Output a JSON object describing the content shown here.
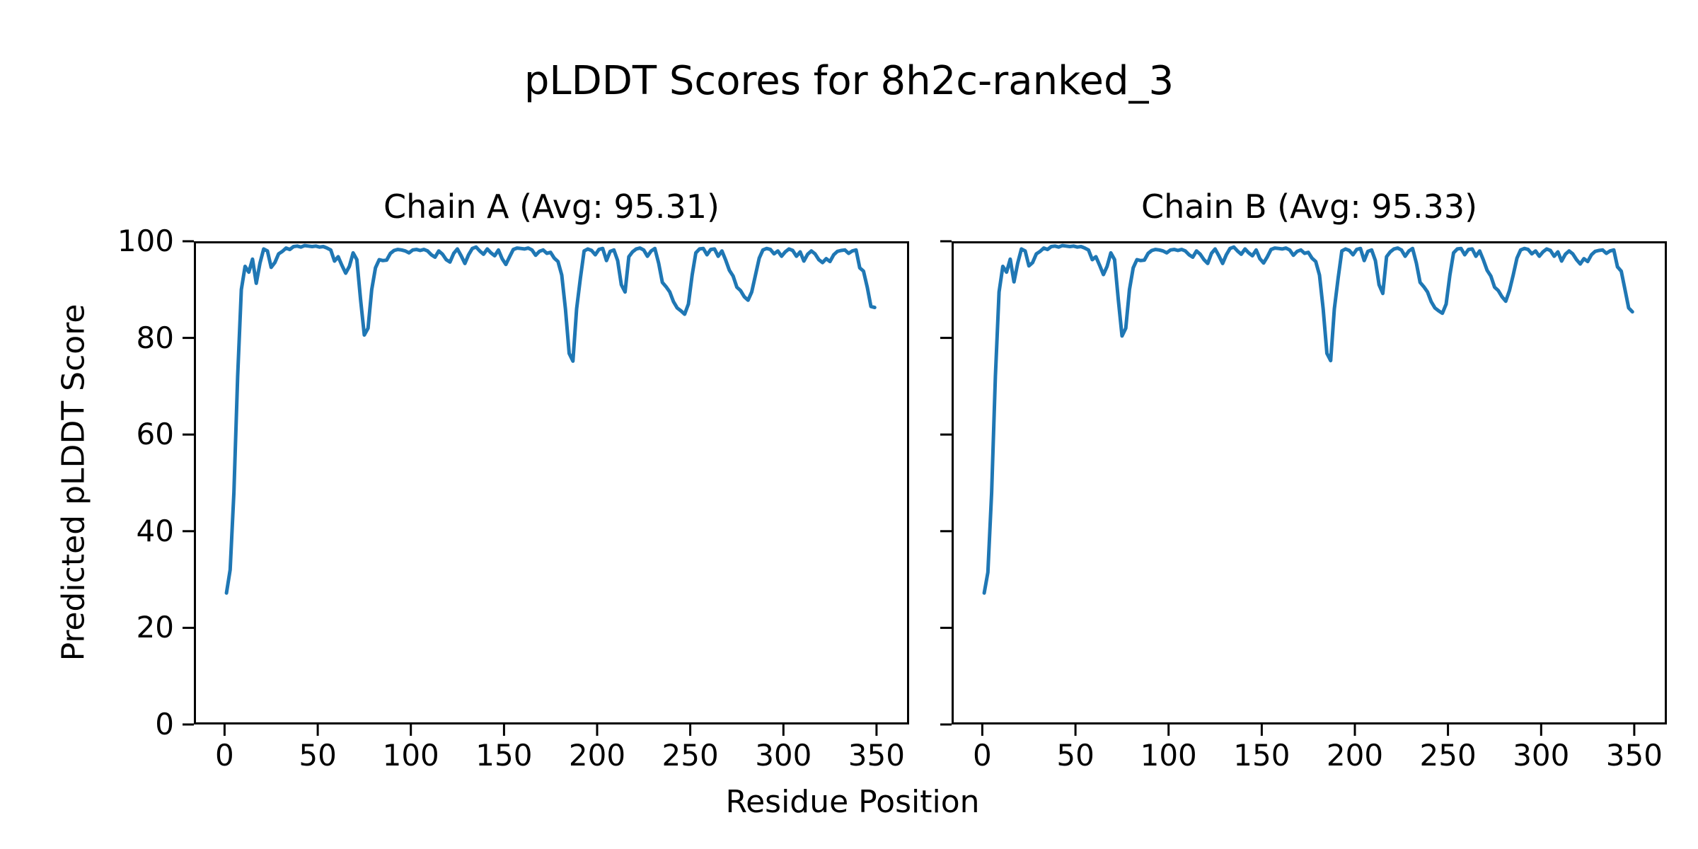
{
  "figure": {
    "suptitle": "pLDDT Scores for 8h2c-ranked_3",
    "xlabel": "Residue Position",
    "ylabel": "Predicted pLDDT Score",
    "background": "#ffffff",
    "line_color": "#1f77b4",
    "spine_color": "#000000",
    "text_color": "#000000"
  },
  "chart_data": [
    {
      "type": "line",
      "title": "Chain A (Avg: 95.31)",
      "series_name": "Chain A pLDDT",
      "avg": 95.31,
      "xlabel": "Residue Position",
      "ylabel": "Predicted pLDDT Score",
      "xlim": [
        -16.5,
        367.5
      ],
      "ylim": [
        0,
        100
      ],
      "xticks": [
        0,
        50,
        100,
        150,
        200,
        250,
        300,
        350
      ],
      "yticks": [
        0,
        20,
        40,
        60,
        80,
        100
      ],
      "show_ytick_labels": true,
      "grid": false,
      "legend": "none",
      "x": [
        1,
        3,
        5,
        7,
        9,
        11,
        13,
        15,
        17,
        19,
        21,
        23,
        25,
        27,
        29,
        31,
        33,
        35,
        37,
        39,
        41,
        43,
        45,
        47,
        49,
        51,
        53,
        55,
        57,
        59,
        61,
        63,
        65,
        67,
        69,
        71,
        73,
        75,
        77,
        79,
        81,
        83,
        85,
        87,
        89,
        91,
        93,
        95,
        97,
        99,
        101,
        103,
        105,
        107,
        109,
        111,
        113,
        115,
        117,
        119,
        121,
        123,
        125,
        127,
        129,
        131,
        133,
        135,
        137,
        139,
        141,
        143,
        145,
        147,
        149,
        151,
        153,
        155,
        157,
        159,
        161,
        163,
        165,
        167,
        169,
        171,
        173,
        175,
        177,
        179,
        181,
        183,
        185,
        187,
        189,
        191,
        193,
        195,
        197,
        199,
        201,
        203,
        205,
        207,
        209,
        211,
        213,
        215,
        217,
        219,
        221,
        223,
        225,
        227,
        229,
        231,
        233,
        235,
        237,
        239,
        241,
        243,
        245,
        247,
        249,
        251,
        253,
        255,
        257,
        259,
        261,
        263,
        265,
        267,
        269,
        271,
        273,
        275,
        277,
        279,
        281,
        283,
        285,
        287,
        289,
        291,
        293,
        295,
        297,
        299,
        301,
        303,
        305,
        307,
        309,
        311,
        313,
        315,
        317,
        319,
        321,
        323,
        325,
        327,
        329,
        331,
        333,
        335,
        337,
        339,
        341,
        343,
        345,
        347,
        349
      ],
      "y": [
        27.2,
        32.0,
        48.0,
        72.0,
        90.0,
        94.8,
        93.6,
        96.3,
        91.3,
        95.5,
        98.4,
        98.0,
        94.6,
        95.6,
        97.4,
        97.9,
        98.6,
        98.3,
        98.9,
        99.0,
        98.8,
        99.1,
        99.0,
        98.9,
        99.0,
        98.8,
        98.9,
        98.6,
        98.2,
        95.9,
        96.8,
        95.0,
        93.4,
        94.8,
        97.6,
        96.2,
        88.0,
        80.6,
        82.0,
        90.0,
        94.5,
        96.2,
        96.0,
        96.1,
        97.5,
        98.1,
        98.3,
        98.2,
        98.0,
        97.6,
        98.2,
        98.3,
        98.1,
        98.3,
        98.0,
        97.2,
        96.7,
        98.0,
        97.3,
        96.2,
        95.7,
        97.5,
        98.4,
        97.0,
        95.4,
        97.2,
        98.5,
        98.8,
        98.0,
        97.3,
        98.4,
        97.6,
        97.0,
        98.2,
        96.4,
        95.2,
        96.8,
        98.3,
        98.6,
        98.5,
        98.4,
        98.6,
        98.2,
        97.1,
        97.9,
        98.2,
        97.5,
        97.7,
        96.5,
        95.8,
        93.0,
        86.0,
        76.8,
        75.2,
        86.0,
        92.3,
        98.0,
        98.4,
        98.1,
        97.2,
        98.3,
        98.5,
        96.0,
        97.9,
        98.2,
        96.0,
        91.0,
        89.5,
        96.8,
        97.8,
        98.4,
        98.6,
        98.2,
        96.9,
        98.0,
        98.5,
        95.5,
        91.5,
        90.6,
        89.5,
        87.5,
        86.2,
        85.6,
        84.9,
        87.0,
        93.0,
        97.6,
        98.4,
        98.5,
        97.2,
        98.3,
        98.4,
        96.9,
        98.0,
        96.1,
        94.0,
        92.8,
        90.5,
        89.8,
        88.5,
        87.8,
        89.5,
        93.0,
        96.5,
        98.2,
        98.5,
        98.3,
        97.4,
        98.0,
        96.9,
        97.8,
        98.4,
        98.1,
        96.9,
        97.8,
        95.9,
        97.3,
        98.0,
        97.4,
        96.2,
        95.6,
        96.4,
        95.8,
        97.2,
        97.9,
        98.1,
        98.2,
        97.5,
        98.0,
        98.2,
        94.5,
        93.8,
        90.5,
        86.5,
        86.3
      ]
    },
    {
      "type": "line",
      "title": "Chain B (Avg: 95.33)",
      "series_name": "Chain B pLDDT",
      "avg": 95.33,
      "xlabel": "Residue Position",
      "ylabel": "Predicted pLDDT Score",
      "xlim": [
        -16.5,
        367.5
      ],
      "ylim": [
        0,
        100
      ],
      "xticks": [
        0,
        50,
        100,
        150,
        200,
        250,
        300,
        350
      ],
      "yticks": [
        0,
        20,
        40,
        60,
        80,
        100
      ],
      "show_ytick_labels": false,
      "grid": false,
      "legend": "none",
      "x": [
        1,
        3,
        5,
        7,
        9,
        11,
        13,
        15,
        17,
        19,
        21,
        23,
        25,
        27,
        29,
        31,
        33,
        35,
        37,
        39,
        41,
        43,
        45,
        47,
        49,
        51,
        53,
        55,
        57,
        59,
        61,
        63,
        65,
        67,
        69,
        71,
        73,
        75,
        77,
        79,
        81,
        83,
        85,
        87,
        89,
        91,
        93,
        95,
        97,
        99,
        101,
        103,
        105,
        107,
        109,
        111,
        113,
        115,
        117,
        119,
        121,
        123,
        125,
        127,
        129,
        131,
        133,
        135,
        137,
        139,
        141,
        143,
        145,
        147,
        149,
        151,
        153,
        155,
        157,
        159,
        161,
        163,
        165,
        167,
        169,
        171,
        173,
        175,
        177,
        179,
        181,
        183,
        185,
        187,
        189,
        191,
        193,
        195,
        197,
        199,
        201,
        203,
        205,
        207,
        209,
        211,
        213,
        215,
        217,
        219,
        221,
        223,
        225,
        227,
        229,
        231,
        233,
        235,
        237,
        239,
        241,
        243,
        245,
        247,
        249,
        251,
        253,
        255,
        257,
        259,
        261,
        263,
        265,
        267,
        269,
        271,
        273,
        275,
        277,
        279,
        281,
        283,
        285,
        287,
        289,
        291,
        293,
        295,
        297,
        299,
        301,
        303,
        305,
        307,
        309,
        311,
        313,
        315,
        317,
        319,
        321,
        323,
        325,
        327,
        329,
        331,
        333,
        335,
        337,
        339,
        341,
        343,
        345,
        347,
        349
      ],
      "y": [
        27.2,
        31.5,
        48.0,
        72.0,
        89.5,
        94.8,
        93.6,
        96.3,
        91.6,
        95.5,
        98.4,
        98.0,
        94.9,
        95.6,
        97.4,
        97.9,
        98.6,
        98.3,
        98.9,
        99.0,
        98.8,
        99.1,
        99.0,
        98.9,
        99.0,
        98.8,
        98.9,
        98.6,
        98.2,
        96.2,
        96.8,
        95.0,
        93.1,
        94.8,
        97.6,
        96.2,
        88.0,
        80.4,
        82.0,
        90.0,
        94.5,
        96.2,
        96.0,
        96.1,
        97.5,
        98.1,
        98.3,
        98.2,
        98.0,
        97.6,
        98.2,
        98.3,
        98.1,
        98.3,
        98.0,
        97.2,
        96.7,
        98.0,
        97.3,
        96.2,
        95.4,
        97.5,
        98.4,
        97.0,
        95.4,
        97.2,
        98.5,
        98.8,
        98.0,
        97.3,
        98.4,
        97.6,
        97.0,
        98.2,
        96.4,
        95.5,
        96.8,
        98.3,
        98.6,
        98.5,
        98.4,
        98.6,
        98.2,
        97.1,
        97.9,
        98.2,
        97.5,
        97.7,
        96.5,
        95.8,
        93.0,
        86.0,
        76.8,
        75.3,
        86.0,
        92.3,
        98.0,
        98.4,
        98.1,
        97.2,
        98.3,
        98.5,
        96.0,
        97.9,
        98.2,
        96.0,
        91.0,
        89.2,
        96.8,
        97.8,
        98.4,
        98.6,
        98.2,
        96.9,
        98.0,
        98.5,
        95.5,
        91.5,
        90.6,
        89.5,
        87.5,
        86.2,
        85.6,
        85.1,
        87.0,
        93.0,
        97.6,
        98.4,
        98.5,
        97.2,
        98.3,
        98.4,
        96.9,
        98.0,
        96.1,
        94.0,
        92.8,
        90.5,
        89.8,
        88.5,
        87.6,
        89.8,
        93.0,
        96.5,
        98.2,
        98.5,
        98.3,
        97.4,
        98.0,
        96.9,
        97.8,
        98.4,
        98.1,
        96.9,
        97.8,
        95.9,
        97.3,
        98.0,
        97.4,
        96.2,
        95.3,
        96.4,
        95.8,
        97.2,
        97.9,
        98.1,
        98.2,
        97.5,
        98.0,
        98.2,
        94.7,
        93.8,
        90.0,
        86.2,
        85.4
      ]
    }
  ]
}
